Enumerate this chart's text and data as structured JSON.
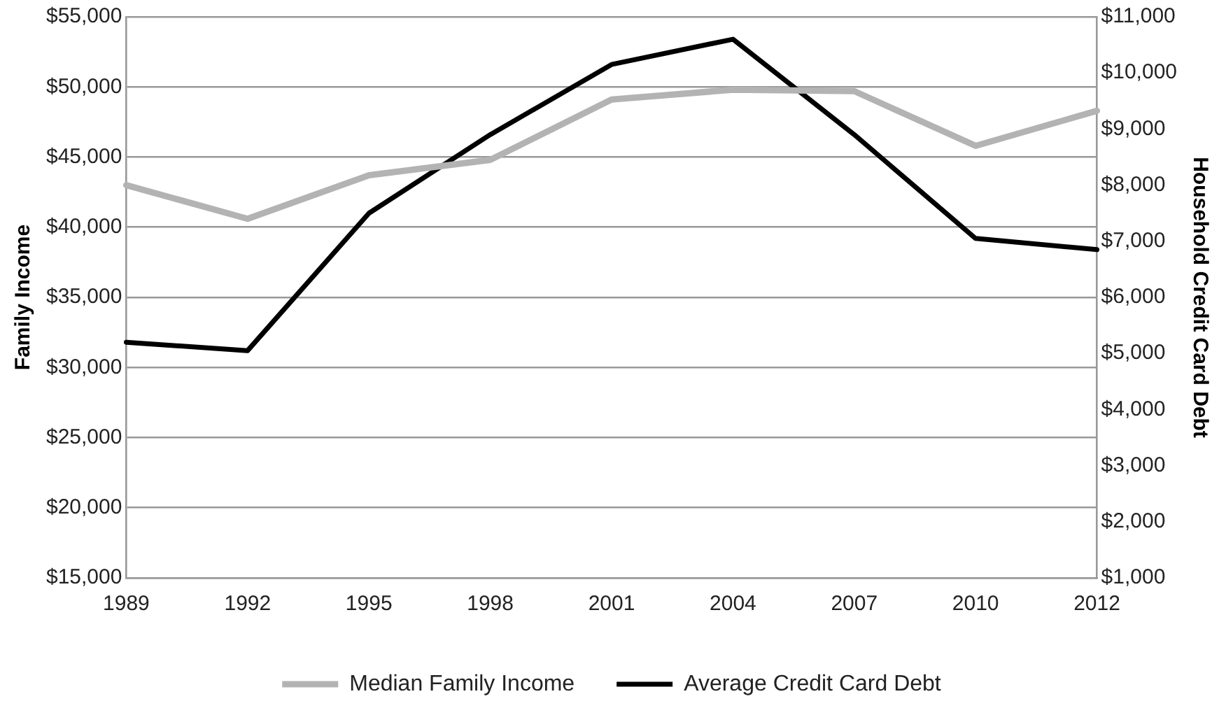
{
  "chart_data": {
    "type": "line",
    "ylabel": "Family Income",
    "y2label": "Household Credit Card Debt",
    "categories": [
      "1989",
      "1992",
      "1995",
      "1998",
      "2001",
      "2004",
      "2007",
      "2010",
      "2012"
    ],
    "series": [
      {
        "name": "Median Family Income",
        "color": "#b3b3b3",
        "values": [
          43000,
          40600,
          43700,
          44800,
          49100,
          49800,
          49700,
          45800,
          48300
        ]
      },
      {
        "name": "Average Credit Card Debt",
        "color": "#000000",
        "axis": "y2",
        "values": [
          5200,
          5050,
          7500,
          8900,
          10150,
          10600,
          8900,
          7050,
          6850
        ]
      }
    ],
    "ylim": [
      15000,
      55000
    ],
    "yticks": [
      {
        "value": 15000,
        "label": "$15,000"
      },
      {
        "value": 20000,
        "label": "$20,000"
      },
      {
        "value": 25000,
        "label": "$25,000"
      },
      {
        "value": 30000,
        "label": "$30,000"
      },
      {
        "value": 35000,
        "label": "$35,000"
      },
      {
        "value": 40000,
        "label": "$40,000"
      },
      {
        "value": 45000,
        "label": "$45,000"
      },
      {
        "value": 50000,
        "label": "$50,000"
      },
      {
        "value": 55000,
        "label": "$55,000"
      }
    ],
    "y2lim": [
      1000,
      11000
    ],
    "y2ticks": [
      {
        "value": 1000,
        "label": "$1,000"
      },
      {
        "value": 2000,
        "label": "$2,000"
      },
      {
        "value": 3000,
        "label": "$3,000"
      },
      {
        "value": 4000,
        "label": "$4,000"
      },
      {
        "value": 5000,
        "label": "$5,000"
      },
      {
        "value": 6000,
        "label": "$6,000"
      },
      {
        "value": 7000,
        "label": "$7,000"
      },
      {
        "value": 8000,
        "label": "$8,000"
      },
      {
        "value": 9000,
        "label": "$9,000"
      },
      {
        "value": 10000,
        "label": "$10,000"
      },
      {
        "value": 11000,
        "label": "$11,000"
      }
    ],
    "grid": "y",
    "legend": "bottom",
    "marker": "none",
    "line_style": "solid"
  }
}
